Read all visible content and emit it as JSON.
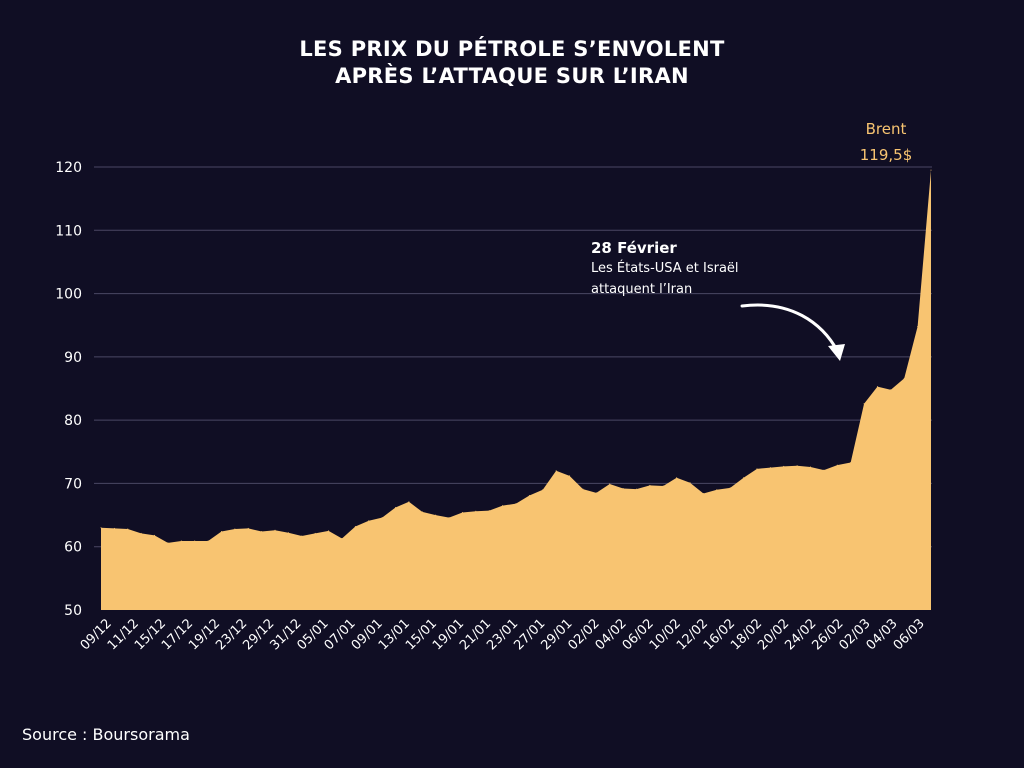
{
  "title_lines": [
    "LES PRIX DU PÉTROLE S’ENVOLENT",
    "APRÈS L’ATTAQUE SUR L’IRAN"
  ],
  "source": "Source : Boursorama",
  "colors": {
    "background": "#100e24",
    "area": "#f8c471",
    "grid": "#4a4763",
    "text": "#ffffff",
    "accent": "#f8c471"
  },
  "annotation": {
    "date": "28 Février",
    "line1": "Les États-USA et Israël",
    "line2": "attaquent l’Iran"
  },
  "chart_data": {
    "type": "area",
    "title": "LES PRIX DU PÉTROLE S’ENVOLENT APRÈS L’ATTAQUE SUR L’IRAN",
    "series_label": "Brent",
    "last_value_label": "119,5$",
    "ylim": [
      50,
      120
    ],
    "yticks": [
      50,
      60,
      70,
      80,
      90,
      100,
      110,
      120
    ],
    "grid": true,
    "xtick_labels": [
      "09/12",
      "11/12",
      "15/12",
      "17/12",
      "19/12",
      "23/12",
      "29/12",
      "31/12",
      "05/01",
      "07/01",
      "09/01",
      "13/01",
      "15/01",
      "19/01",
      "21/01",
      "23/01",
      "27/01",
      "29/01",
      "02/02",
      "04/02",
      "06/02",
      "10/02",
      "12/02",
      "16/02",
      "18/02",
      "20/02",
      "24/02",
      "26/02",
      "02/03",
      "04/03",
      "06/03"
    ],
    "values": [
      63.0,
      62.9,
      62.8,
      62.1,
      61.8,
      60.6,
      60.9,
      60.9,
      60.9,
      62.4,
      62.8,
      62.9,
      62.4,
      62.6,
      62.2,
      61.7,
      62.1,
      62.5,
      61.3,
      63.2,
      64.1,
      64.6,
      66.2,
      67.1,
      65.5,
      65.0,
      64.6,
      65.4,
      65.6,
      65.7,
      66.5,
      66.8,
      68.1,
      69.0,
      72.0,
      71.2,
      69.1,
      68.5,
      69.9,
      69.2,
      69.1,
      69.7,
      69.6,
      70.9,
      70.1,
      68.4,
      69.0,
      69.3,
      70.9,
      72.3,
      72.5,
      72.7,
      72.8,
      72.6,
      72.1,
      72.9,
      73.3,
      82.6,
      85.3,
      84.8,
      86.6,
      94.8,
      119.5
    ]
  }
}
